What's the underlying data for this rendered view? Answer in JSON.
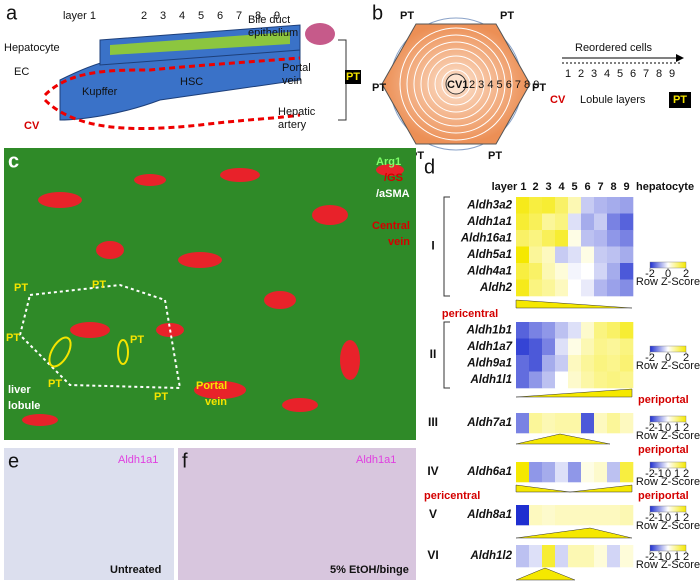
{
  "panel_a": {
    "label": "a",
    "layers": [
      "layer 1",
      "2",
      "3",
      "4",
      "5",
      "6",
      "7",
      "8",
      "9"
    ],
    "hepatocyte": "Hepatocyte",
    "ec": "EC",
    "kupffer": "Kupffer",
    "hsc": "HSC",
    "cv": "CV",
    "bile_duct": [
      "Bile duct",
      "epithelium"
    ],
    "portal_vein": [
      "Portal",
      "vein"
    ],
    "hepatic_artery": [
      "Hepatic",
      "artery"
    ],
    "pt": "PT"
  },
  "panel_b": {
    "label": "b",
    "pt": [
      "PT",
      "PT",
      "PT",
      "PT",
      "PT",
      "PT"
    ],
    "cv1": "CV1",
    "inner_layers": "2 3 4 5 6 7 8 9",
    "reordered": "Reordered cells",
    "layers": [
      "1",
      "2",
      "3",
      "4",
      "5",
      "6",
      "7",
      "8",
      "9"
    ],
    "cv": "CV",
    "lobule_layers": "Lobule layers",
    "pt_key": "PT"
  },
  "panel_c": {
    "label": "c",
    "stain": [
      "Arg1",
      "/GS",
      "/aSMA"
    ],
    "central_vein": [
      "Central",
      "vein"
    ],
    "pt": [
      "PT",
      "PT",
      "PT",
      "PT",
      "PT",
      "PT"
    ],
    "lobule": [
      "liver",
      "lobule"
    ],
    "portal_vein": [
      "Portal",
      "vein"
    ]
  },
  "panel_d": {
    "label": "d",
    "columns": [
      "layer 1",
      "2",
      "3",
      "4",
      "5",
      "6",
      "7",
      "8",
      "9"
    ],
    "hepatocyte": "hepatocyte",
    "colorbar_title": "Row Z-Score",
    "groups": [
      {
        "id": "I",
        "genes": [
          "Aldh3a2",
          "Aldh1a1",
          "Aldh16a1",
          "Aldh5a1",
          "Aldh4a1",
          "Aldh2"
        ],
        "colorbar_ticks": [
          -2,
          0,
          2
        ],
        "zones": [
          "pericentral"
        ],
        "values": [
          [
            1.8,
            1.5,
            1.6,
            1.2,
            0.6,
            -0.5,
            -0.7,
            -0.8,
            -0.9
          ],
          [
            1.6,
            1.3,
            0.8,
            1.0,
            -0.3,
            -0.8,
            -0.5,
            -1.2,
            -1.5
          ],
          [
            1.2,
            1.0,
            1.3,
            1.6,
            0.2,
            -0.6,
            -0.7,
            -1.0,
            -1.2
          ],
          [
            2.0,
            0.8,
            0.5,
            -0.5,
            -0.3,
            0.2,
            -0.5,
            -0.6,
            -0.8
          ],
          [
            1.5,
            1.2,
            0.6,
            0.3,
            -0.1,
            0.0,
            -0.4,
            -0.8,
            -1.6
          ],
          [
            1.8,
            1.0,
            0.8,
            0.5,
            0.0,
            -0.2,
            -0.7,
            -0.9,
            -1.1
          ]
        ]
      },
      {
        "id": "II",
        "genes": [
          "Aldh1b1",
          "Aldh1a7",
          "Aldh9a1",
          "Aldh1l1"
        ],
        "colorbar_ticks": [
          -2,
          0,
          2
        ],
        "zones": [
          "periportal"
        ],
        "values": [
          [
            -1.5,
            -1.2,
            -1.0,
            -0.6,
            -0.3,
            0.4,
            1.0,
            1.2,
            1.6
          ],
          [
            -1.8,
            -1.6,
            -1.2,
            -0.3,
            0.2,
            0.6,
            0.9,
            0.8,
            1.0
          ],
          [
            -1.4,
            -1.6,
            -0.8,
            -0.5,
            0.5,
            0.8,
            1.0,
            0.9,
            1.1
          ],
          [
            -1.4,
            -1.0,
            -0.6,
            0.0,
            0.4,
            0.7,
            0.9,
            1.0,
            0.9
          ]
        ]
      },
      {
        "id": "III",
        "genes": [
          "Aldh7a1"
        ],
        "colorbar_ticks": [
          -2,
          -1,
          0,
          1,
          2
        ],
        "zones": [
          "periportal"
        ],
        "values": [
          [
            -1.2,
            0.8,
            0.6,
            0.7,
            0.7,
            -1.6,
            0.5,
            0.8,
            0.5
          ]
        ]
      },
      {
        "id": "IV",
        "genes": [
          "Aldh6a1"
        ],
        "colorbar_ticks": [
          -2,
          -1,
          0,
          1,
          2
        ],
        "zones": [
          "pericentral",
          "periportal"
        ],
        "values": [
          [
            2.0,
            -1.0,
            -0.8,
            -0.3,
            -1.0,
            0.2,
            0.4,
            -0.6,
            1.5
          ]
        ]
      },
      {
        "id": "V",
        "genes": [
          "Aldh8a1"
        ],
        "colorbar_ticks": [
          -2,
          -1,
          0,
          1,
          2
        ],
        "zones": [],
        "values": [
          [
            -2.0,
            0.5,
            0.4,
            0.5,
            0.5,
            0.5,
            0.5,
            0.5,
            0.6
          ]
        ]
      },
      {
        "id": "VI",
        "genes": [
          "Aldh1l2"
        ],
        "colorbar_ticks": [
          -2,
          -1,
          0,
          1,
          2
        ],
        "zones": [],
        "values": [
          [
            -0.6,
            -0.3,
            1.6,
            -0.4,
            0.6,
            0.6,
            0.3,
            -0.4,
            0.3
          ]
        ]
      }
    ]
  },
  "panel_e": {
    "label": "e",
    "stain": "Aldh1a1",
    "condition": "Untreated"
  },
  "panel_f": {
    "label": "f",
    "stain": "Aldh1a1",
    "condition": "5% EtOH/binge"
  }
}
